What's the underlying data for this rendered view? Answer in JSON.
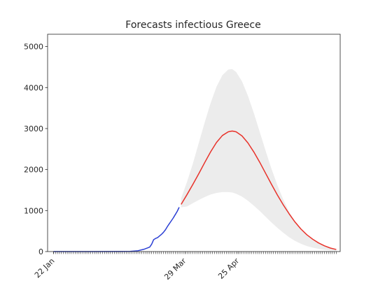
{
  "chart_data": {
    "type": "line",
    "title": "Forecasts infectious Greece",
    "xlabel": "",
    "ylabel": "",
    "x_axis": {
      "type": "date",
      "range": [
        "2020-01-19",
        "2020-06-16"
      ],
      "tick_labels": [
        {
          "date": "2020-01-22",
          "label": "22 Jan"
        },
        {
          "date": "2020-03-29",
          "label": "29 Mar"
        },
        {
          "date": "2020-04-25",
          "label": "25 Apr"
        }
      ],
      "minor_ticks": "daily",
      "minor_ticks_start": "2020-01-22",
      "minor_ticks_end": "2020-06-14"
    },
    "y_axis": {
      "range": [
        0,
        5300
      ],
      "ticks": [
        0,
        1000,
        2000,
        3000,
        4000,
        5000
      ]
    },
    "grid": false,
    "legend": "none",
    "series": [
      {
        "role": "observed",
        "color": "#2b3fd4",
        "points": [
          [
            "2020-01-22",
            0
          ],
          [
            "2020-02-10",
            0
          ],
          [
            "2020-02-26",
            2
          ],
          [
            "2020-03-01",
            5
          ],
          [
            "2020-03-05",
            20
          ],
          [
            "2020-03-08",
            55
          ],
          [
            "2020-03-10",
            90
          ],
          [
            "2020-03-11",
            110
          ],
          [
            "2020-03-12",
            180
          ],
          [
            "2020-03-13",
            290
          ],
          [
            "2020-03-14",
            320
          ],
          [
            "2020-03-15",
            340
          ],
          [
            "2020-03-16",
            380
          ],
          [
            "2020-03-17",
            420
          ],
          [
            "2020-03-18",
            470
          ],
          [
            "2020-03-19",
            530
          ],
          [
            "2020-03-20",
            610
          ],
          [
            "2020-03-21",
            680
          ],
          [
            "2020-03-22",
            750
          ],
          [
            "2020-03-23",
            820
          ],
          [
            "2020-03-24",
            900
          ],
          [
            "2020-03-25",
            980
          ],
          [
            "2020-03-26",
            1080
          ]
        ]
      },
      {
        "role": "forecast",
        "color": "#e8322a",
        "points": [
          [
            "2020-03-27",
            1150
          ],
          [
            "2020-03-30",
            1390
          ],
          [
            "2020-04-02",
            1640
          ],
          [
            "2020-04-05",
            1900
          ],
          [
            "2020-04-08",
            2170
          ],
          [
            "2020-04-11",
            2430
          ],
          [
            "2020-04-14",
            2660
          ],
          [
            "2020-04-17",
            2830
          ],
          [
            "2020-04-20",
            2920
          ],
          [
            "2020-04-22",
            2940
          ],
          [
            "2020-04-24",
            2920
          ],
          [
            "2020-04-27",
            2820
          ],
          [
            "2020-04-30",
            2650
          ],
          [
            "2020-05-03",
            2430
          ],
          [
            "2020-05-06",
            2180
          ],
          [
            "2020-05-09",
            1910
          ],
          [
            "2020-05-12",
            1640
          ],
          [
            "2020-05-15",
            1380
          ],
          [
            "2020-05-18",
            1140
          ],
          [
            "2020-05-21",
            920
          ],
          [
            "2020-05-24",
            720
          ],
          [
            "2020-05-27",
            550
          ],
          [
            "2020-05-30",
            410
          ],
          [
            "2020-06-02",
            300
          ],
          [
            "2020-06-05",
            210
          ],
          [
            "2020-06-08",
            140
          ],
          [
            "2020-06-11",
            85
          ],
          [
            "2020-06-14",
            50
          ]
        ]
      },
      {
        "role": "forecast-interval",
        "color": "#ececec",
        "upper": [
          [
            "2020-03-27",
            1300
          ],
          [
            "2020-03-30",
            1700
          ],
          [
            "2020-04-02",
            2150
          ],
          [
            "2020-04-05",
            2650
          ],
          [
            "2020-04-08",
            3150
          ],
          [
            "2020-04-11",
            3620
          ],
          [
            "2020-04-14",
            4020
          ],
          [
            "2020-04-17",
            4300
          ],
          [
            "2020-04-20",
            4440
          ],
          [
            "2020-04-22",
            4450
          ],
          [
            "2020-04-24",
            4380
          ],
          [
            "2020-04-27",
            4150
          ],
          [
            "2020-04-30",
            3800
          ],
          [
            "2020-05-03",
            3380
          ],
          [
            "2020-05-06",
            2920
          ],
          [
            "2020-05-09",
            2460
          ],
          [
            "2020-05-12",
            2020
          ],
          [
            "2020-05-15",
            1620
          ],
          [
            "2020-05-18",
            1270
          ],
          [
            "2020-05-21",
            970
          ],
          [
            "2020-05-24",
            730
          ],
          [
            "2020-05-27",
            540
          ],
          [
            "2020-05-30",
            390
          ],
          [
            "2020-06-02",
            280
          ],
          [
            "2020-06-05",
            195
          ],
          [
            "2020-06-08",
            130
          ],
          [
            "2020-06-11",
            85
          ],
          [
            "2020-06-14",
            55
          ]
        ],
        "lower": [
          [
            "2020-03-27",
            1080
          ],
          [
            "2020-03-30",
            1100
          ],
          [
            "2020-04-02",
            1180
          ],
          [
            "2020-04-05",
            1260
          ],
          [
            "2020-04-08",
            1330
          ],
          [
            "2020-04-11",
            1390
          ],
          [
            "2020-04-14",
            1430
          ],
          [
            "2020-04-17",
            1450
          ],
          [
            "2020-04-20",
            1450
          ],
          [
            "2020-04-22",
            1440
          ],
          [
            "2020-04-24",
            1410
          ],
          [
            "2020-04-27",
            1340
          ],
          [
            "2020-04-30",
            1240
          ],
          [
            "2020-05-03",
            1120
          ],
          [
            "2020-05-06",
            990
          ],
          [
            "2020-05-09",
            850
          ],
          [
            "2020-05-12",
            710
          ],
          [
            "2020-05-15",
            580
          ],
          [
            "2020-05-18",
            460
          ],
          [
            "2020-05-21",
            350
          ],
          [
            "2020-05-24",
            260
          ],
          [
            "2020-05-27",
            190
          ],
          [
            "2020-05-30",
            135
          ],
          [
            "2020-06-02",
            95
          ],
          [
            "2020-06-05",
            65
          ],
          [
            "2020-06-08",
            42
          ],
          [
            "2020-06-11",
            28
          ],
          [
            "2020-06-14",
            18
          ]
        ]
      }
    ]
  }
}
